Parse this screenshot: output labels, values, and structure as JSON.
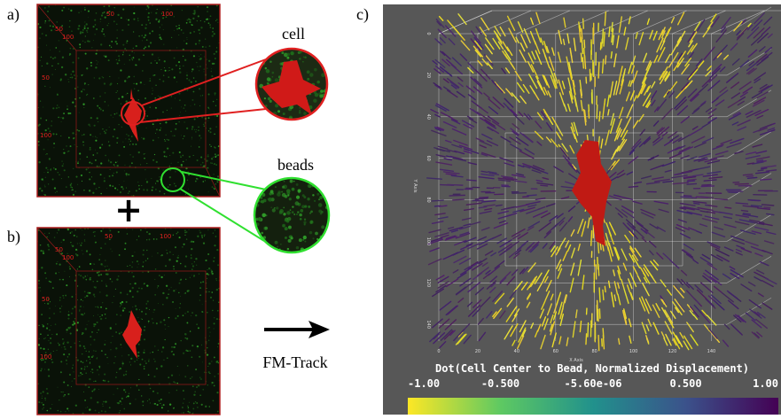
{
  "panels": {
    "a": {
      "label": "a)",
      "top_ticks": [
        "50",
        "100"
      ],
      "left_ticks": [
        "50",
        "100"
      ],
      "corner_ticks": [
        "50",
        "100"
      ]
    },
    "b": {
      "label": "b)",
      "top_ticks": [
        "50",
        "100"
      ],
      "left_ticks": [
        "50",
        "100"
      ],
      "corner_ticks": [
        "50",
        "100"
      ]
    },
    "c": {
      "label": "c)",
      "x_ticks": [
        "0",
        "20",
        "40",
        "60",
        "80",
        "100",
        "120",
        "140"
      ],
      "x_axis_title": "X Axis",
      "y_ticks": [
        "0",
        "20",
        "40",
        "60",
        "80",
        "100",
        "120",
        "140"
      ],
      "y_axis_title": "Y Axis",
      "colorbar_title": "Dot(Cell Center to Bead, Normalized Displacement)",
      "colorbar_ticks": [
        "-1.00",
        "-0.500",
        "-5.60e-06",
        "0.500",
        "1.00"
      ]
    }
  },
  "zoom": {
    "cell": "cell",
    "beads": "beads"
  },
  "plus": "+",
  "method": "FM-Track"
}
